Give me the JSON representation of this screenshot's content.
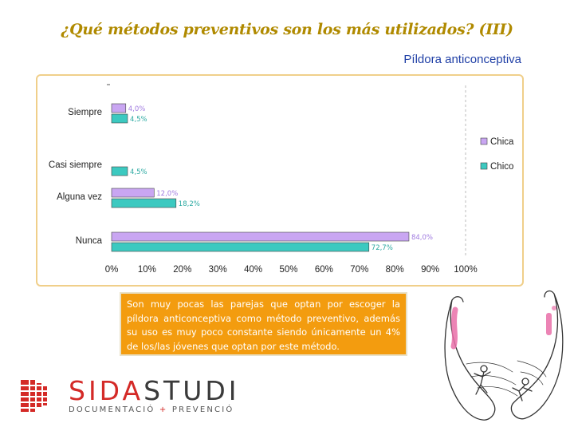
{
  "header": {
    "title": "¿Qué métodos preventivos son los más utilizados? (III)",
    "subtitle": "Píldora anticonceptiva"
  },
  "chart_data": {
    "type": "bar",
    "orientation": "horizontal",
    "categories": [
      "Siempre",
      "Casi siempre",
      "Alguna vez",
      "Nunca"
    ],
    "series": [
      {
        "name": "Chica",
        "values": [
          4.0,
          null,
          12.0,
          84.0
        ],
        "labels": [
          "4,0%",
          "",
          "12,0%",
          "84,0%"
        ],
        "color": "#c9a6f2"
      },
      {
        "name": "Chico",
        "values": [
          4.5,
          4.5,
          18.2,
          72.7
        ],
        "labels": [
          "4,5%",
          "4,5%",
          "18,2%",
          "72,7%"
        ],
        "color": "#3cc9c0"
      }
    ],
    "x_ticks": [
      "0%",
      "10%",
      "20%",
      "30%",
      "40%",
      "50%",
      "60%",
      "70%",
      "80%",
      "90%",
      "100%"
    ],
    "xlim": [
      0,
      100
    ],
    "grid": false,
    "legend": "right"
  },
  "note": {
    "text": "Son muy pocas las parejas que optan por escoger la píldora anticonceptiva como método preventivo, además su uso es muy poco constante siendo únicamente un 4% de los/las jóvenes que optan por este método."
  },
  "logo": {
    "brand_part1": "SIDA",
    "brand_part2": "STUDI",
    "tagline_part1": "DOCUMENTACIÓ",
    "tagline_plus": "+",
    "tagline_part2": "PREVENCIÓ"
  },
  "colors": {
    "title": "#b08a00",
    "subtitle": "#1f3fa6",
    "chica": "#c9a6f2",
    "chico": "#3cc9c0",
    "note_background": "#f39c0f",
    "logo_red": "#d42a27"
  },
  "illustration": {
    "icon": "couple-with-condom-illustration"
  }
}
